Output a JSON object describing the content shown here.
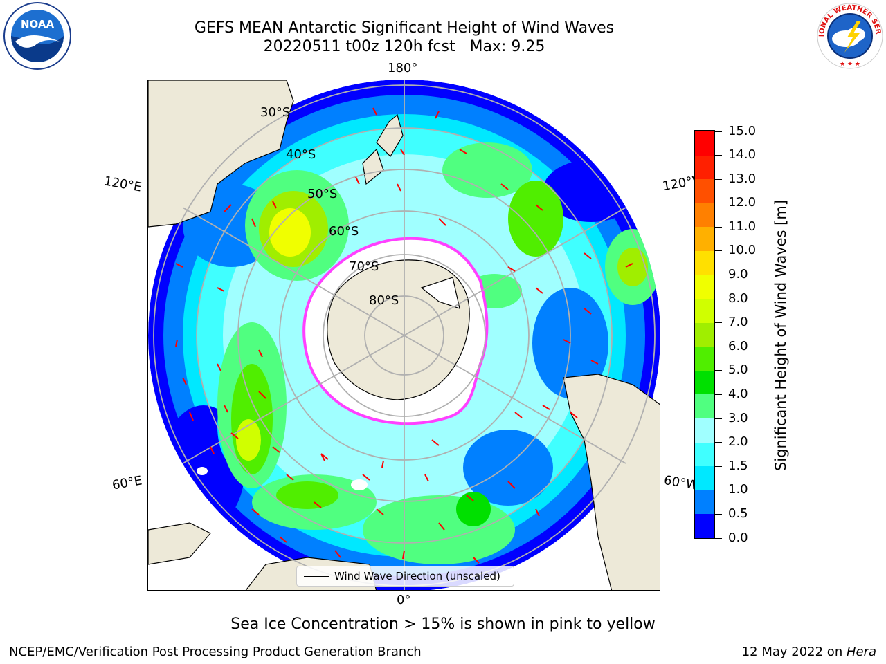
{
  "title": {
    "line1": "GEFS MEAN Antarctic Significant Height of Wind Waves",
    "line2": "20220511 t00z 120h fcst   Max: 9.25"
  },
  "logos": {
    "left": {
      "icon": "noaa-logo-icon",
      "text": "NOAA"
    },
    "right": {
      "icon": "nws-logo-icon",
      "text": "NATIONAL WEATHER SERVICE"
    }
  },
  "map": {
    "longitude_labels": {
      "top": "180°",
      "bottom": "0°",
      "left_upper": "120°E",
      "left_lower": "60°E",
      "right_upper": "120°W",
      "right_lower": "60°W"
    },
    "latitude_labels": [
      "30°S",
      "40°S",
      "50°S",
      "60°S",
      "70°S",
      "80°S"
    ],
    "colors": {
      "land": "#ede9d8",
      "ice_edge": "#ff40ff",
      "ice_inner": "#ffb400",
      "arrow": "#ff0000",
      "grid": "#b0b0b0"
    }
  },
  "colorbar": {
    "title": "Significant Height of Wind Waves [m]",
    "ticks": [
      "0.0",
      "0.5",
      "1.0",
      "1.5",
      "2.0",
      "3.0",
      "4.0",
      "5.0",
      "6.0",
      "7.0",
      "8.0",
      "9.0",
      "10.0",
      "11.0",
      "12.0",
      "13.0",
      "14.0",
      "15.0"
    ],
    "colors": [
      "#0000ff",
      "#0080ff",
      "#00e8ff",
      "#40ffff",
      "#a0ffff",
      "#50ff80",
      "#00e000",
      "#50ee00",
      "#a0ee00",
      "#d0ff00",
      "#f0ff00",
      "#ffe000",
      "#ffb000",
      "#ff8000",
      "#ff5000",
      "#ff2000",
      "#ff0000"
    ]
  },
  "legend": {
    "label": "Wind Wave Direction (unscaled)"
  },
  "sea_ice_note": "Sea Ice Concentration > 15% is shown in pink to yellow",
  "footer": {
    "left": "NCEP/EMC/Verification Post Processing Product Generation Branch",
    "right_date": "12 May 2022 on ",
    "right_host": "Hera"
  }
}
